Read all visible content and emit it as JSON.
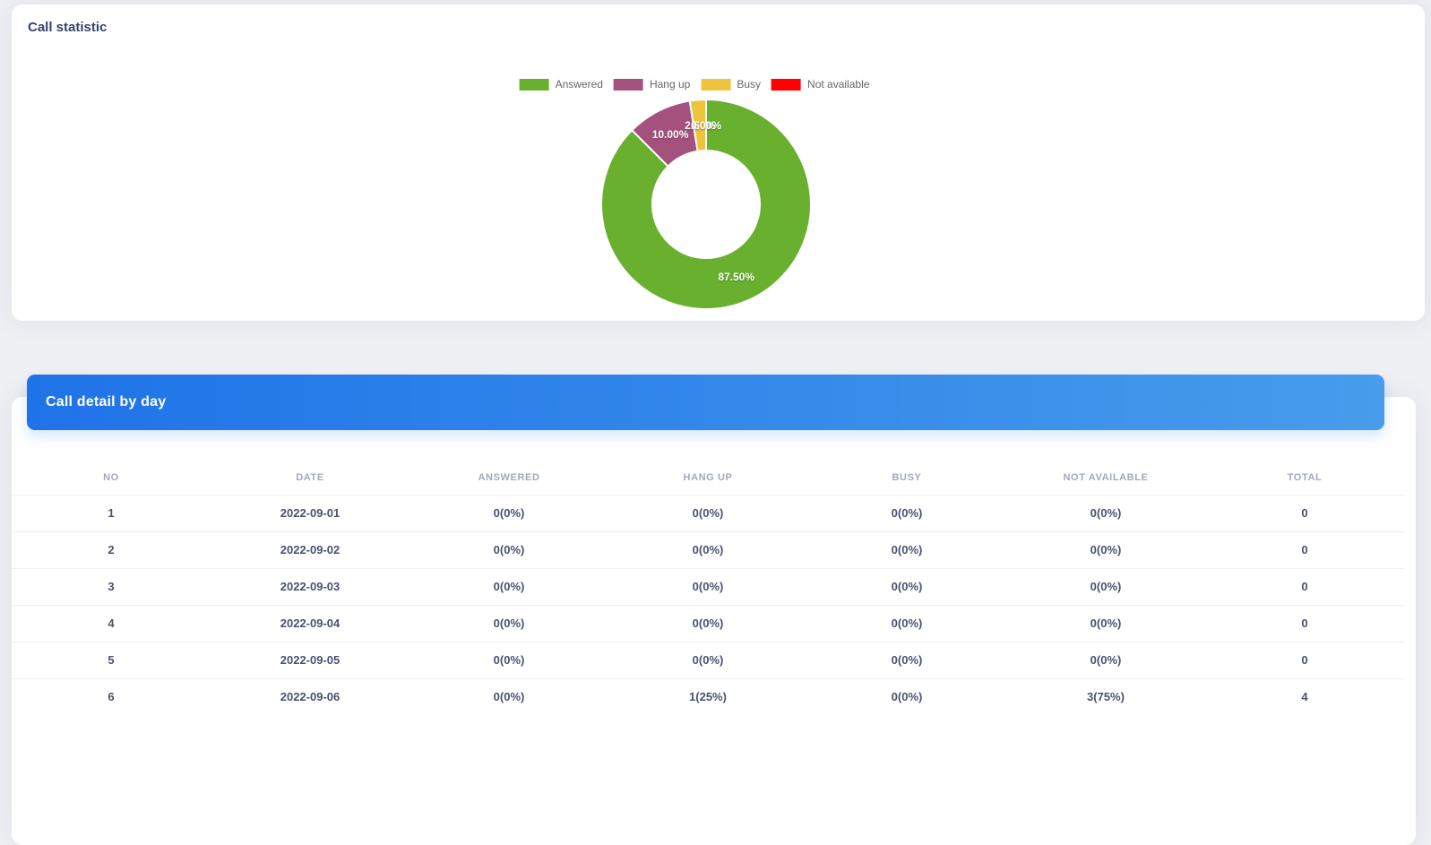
{
  "statistic_card": {
    "title": "Call statistic"
  },
  "chart_data": {
    "type": "pie",
    "subtype": "donut",
    "title": "Call statistic",
    "labels": [
      "Answered",
      "Hang up",
      "Busy",
      "Not available"
    ],
    "values": [
      87.5,
      10.0,
      2.5,
      0.0
    ],
    "unit": "percent",
    "slice_labels": [
      "87.50%",
      "10.00%",
      "2.50%",
      "0.00%"
    ],
    "colors": [
      "#69b02e",
      "#a5517e",
      "#eec33e",
      "#ff0000"
    ],
    "legend_position": "top",
    "start_angle": "top",
    "direction": "clockwise",
    "outer_radius": 117,
    "inner_radius": 60,
    "label_radius": 88
  },
  "detail_card": {
    "title": "Call detail by day"
  },
  "table": {
    "columns": [
      "NO",
      "DATE",
      "ANSWERED",
      "HANG UP",
      "BUSY",
      "NOT AVAILABLE",
      "TOTAL"
    ],
    "rows": [
      [
        "1",
        "2022-09-01",
        "0(0%)",
        "0(0%)",
        "0(0%)",
        "0(0%)",
        "0"
      ],
      [
        "2",
        "2022-09-02",
        "0(0%)",
        "0(0%)",
        "0(0%)",
        "0(0%)",
        "0"
      ],
      [
        "3",
        "2022-09-03",
        "0(0%)",
        "0(0%)",
        "0(0%)",
        "0(0%)",
        "0"
      ],
      [
        "4",
        "2022-09-04",
        "0(0%)",
        "0(0%)",
        "0(0%)",
        "0(0%)",
        "0"
      ],
      [
        "5",
        "2022-09-05",
        "0(0%)",
        "0(0%)",
        "0(0%)",
        "0(0%)",
        "0"
      ],
      [
        "6",
        "2022-09-06",
        "0(0%)",
        "1(25%)",
        "0(0%)",
        "3(75%)",
        "4"
      ]
    ]
  }
}
